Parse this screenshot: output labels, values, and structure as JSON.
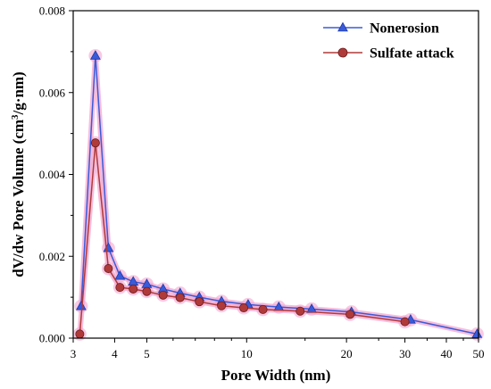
{
  "chart_data": {
    "type": "line",
    "xscale": "log",
    "xlim": [
      3,
      50
    ],
    "ylim": [
      0,
      0.008
    ],
    "xticks": [
      3,
      4,
      5,
      10,
      20,
      30,
      40,
      50
    ],
    "xtick_labels": [
      "3",
      "4",
      "5",
      "10",
      "20",
      "30",
      "40",
      "50"
    ],
    "yticks": [
      0,
      0.002,
      0.004,
      0.006,
      0.008
    ],
    "ytick_labels": [
      "0.000",
      "0.002",
      "0.004",
      "0.006",
      "0.008"
    ],
    "xlabel": "Pore Width (nm)",
    "ylabel_parts": [
      "dV/dw Pore Volume (cm",
      "3",
      "/g·nm)"
    ],
    "legend_position": "top-right",
    "grid": false,
    "series": [
      {
        "name": "Nonerosion",
        "color": "#3a5bd9",
        "marker": "triangle",
        "x": [
          3.17,
          3.5,
          3.83,
          4.15,
          4.55,
          5.0,
          5.6,
          6.3,
          7.2,
          8.4,
          10.1,
          12.5,
          15.7,
          20.7,
          31.2,
          49.5
        ],
        "y": [
          0.00078,
          0.0069,
          0.0022,
          0.00152,
          0.00138,
          0.00132,
          0.0012,
          0.0011,
          0.001,
          0.0009,
          0.00082,
          0.00076,
          0.00071,
          0.00064,
          0.00045,
          0.0001
        ]
      },
      {
        "name": "Sulfate attack",
        "color": "#b03a3a",
        "marker": "circle",
        "x": [
          3.14,
          3.5,
          3.83,
          4.15,
          4.55,
          5.0,
          5.6,
          6.3,
          7.2,
          8.4,
          9.8,
          11.2,
          14.5,
          20.5,
          30.0
        ],
        "y": [
          0.0001,
          0.00477,
          0.0017,
          0.00124,
          0.0012,
          0.00114,
          0.00105,
          0.00099,
          0.00089,
          0.00079,
          0.00074,
          0.0007,
          0.00066,
          0.00058,
          0.0004
        ]
      }
    ]
  }
}
